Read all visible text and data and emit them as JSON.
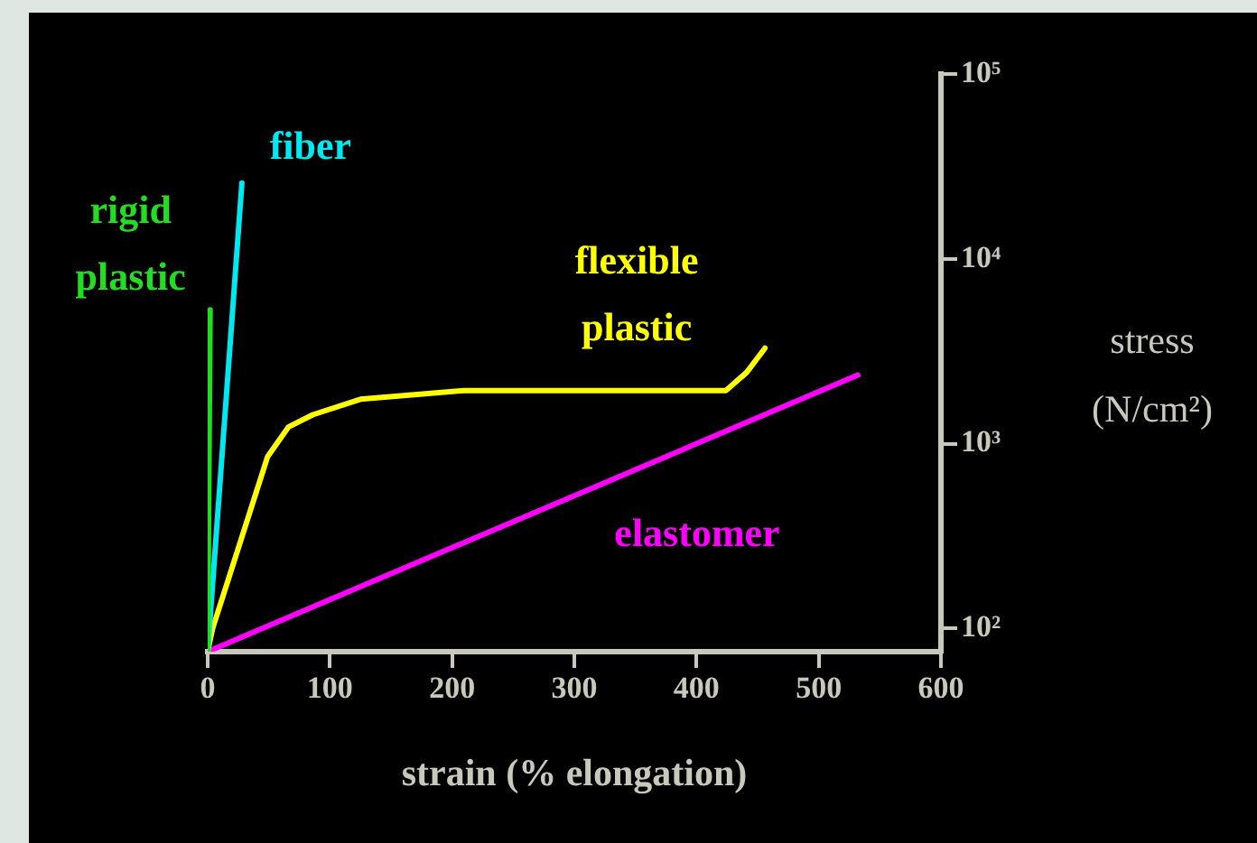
{
  "chart_data": {
    "type": "line",
    "xlabel": "strain (% elongation)",
    "ylabel": "stress\n(N/cm²)",
    "log": "y",
    "xlim": [
      0,
      600
    ],
    "xticks": [
      0,
      100,
      200,
      300,
      400,
      500,
      600
    ],
    "ylim": [
      75,
      100000
    ],
    "yticks": [
      {
        "value": 100,
        "label": "10²"
      },
      {
        "value": 1000,
        "label": "10³"
      },
      {
        "value": 10000,
        "label": "10⁴"
      },
      {
        "value": 100000,
        "label": "10⁵"
      }
    ],
    "grid": false,
    "legend": false,
    "marker": "none",
    "line_style": "solid",
    "series": [
      {
        "name": "rigid\nplastic",
        "color": "#22dd22",
        "x": [
          0,
          2
        ],
        "values": [
          75,
          5300
        ]
      },
      {
        "name": "fiber",
        "color": "#00e8f0",
        "x": [
          0,
          28
        ],
        "values": [
          75,
          25700
        ]
      },
      {
        "name": "flexible\nplastic",
        "color": "#ffff00",
        "x": [
          0,
          4,
          49,
          66,
          86,
          125,
          210,
          424,
          441,
          456
        ],
        "values": [
          75,
          100,
          850,
          1230,
          1435,
          1740,
          1940,
          1940,
          2430,
          3290
        ]
      },
      {
        "name": "elastomer",
        "color": "#ff00ff",
        "x": [
          0,
          532
        ],
        "values": [
          75,
          2350
        ]
      }
    ]
  }
}
